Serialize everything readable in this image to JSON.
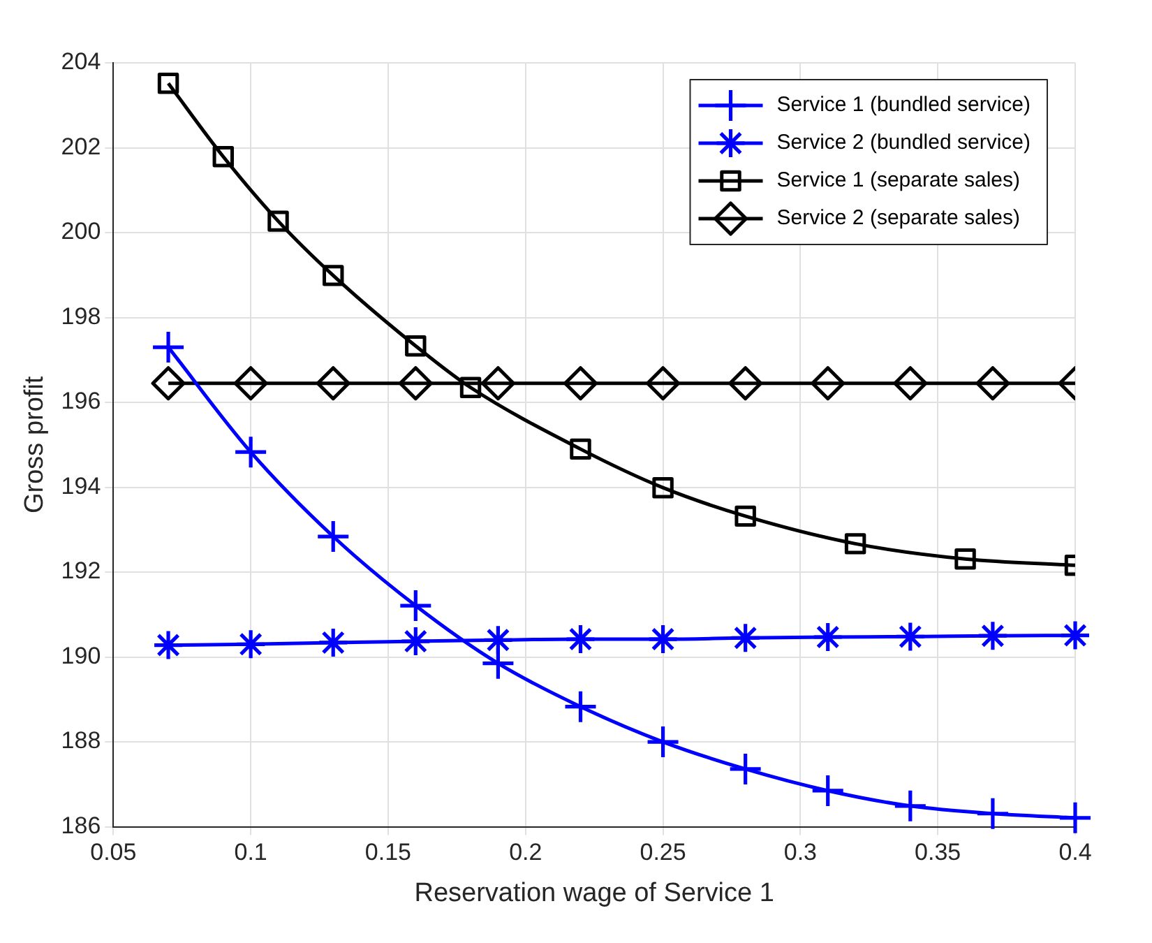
{
  "chart_data": {
    "type": "line",
    "xlabel": "Reservation wage of Service 1",
    "ylabel": "Gross profit",
    "xlim": [
      0.05,
      0.4
    ],
    "xticks": [
      0.05,
      0.1,
      0.15,
      0.2,
      0.25,
      0.3,
      0.35,
      0.4
    ],
    "ylim": [
      186,
      204
    ],
    "yticks": [
      186,
      188,
      190,
      192,
      194,
      196,
      198,
      200,
      202,
      204
    ],
    "grid": true,
    "legend": "top right",
    "line_style": "solid",
    "series": [
      {
        "name": "Service 1 (bundled service)",
        "color": "#0000ff",
        "marker": "cross",
        "x": [
          0.07,
          0.1,
          0.13,
          0.16,
          0.19,
          0.22,
          0.25,
          0.28,
          0.31,
          0.34,
          0.37,
          0.4
        ],
        "values": [
          197.3,
          194.83,
          192.84,
          191.21,
          189.85,
          188.83,
          188.0,
          187.36,
          186.85,
          186.49,
          186.31,
          186.21
        ]
      },
      {
        "name": "Service 2 (bundled service)",
        "color": "#0000ff",
        "marker": "star",
        "x": [
          0.07,
          0.1,
          0.13,
          0.16,
          0.19,
          0.22,
          0.25,
          0.28,
          0.31,
          0.34,
          0.37,
          0.4
        ],
        "values": [
          190.28,
          190.3,
          190.34,
          190.37,
          190.4,
          190.42,
          190.42,
          190.45,
          190.47,
          190.48,
          190.5,
          190.51
        ]
      },
      {
        "name": "Service 1 (separate sales)",
        "color": "#000000",
        "marker": "square",
        "x": [
          0.07,
          0.09,
          0.11,
          0.13,
          0.16,
          0.18,
          0.22,
          0.25,
          0.28,
          0.32,
          0.36,
          0.4
        ],
        "values": [
          203.52,
          201.79,
          200.27,
          198.99,
          197.33,
          196.35,
          194.9,
          193.99,
          193.32,
          192.67,
          192.31,
          192.16
        ]
      },
      {
        "name": "Service 2 (separate sales)",
        "color": "#000000",
        "marker": "diamond",
        "x": [
          0.07,
          0.1,
          0.13,
          0.16,
          0.19,
          0.22,
          0.25,
          0.28,
          0.31,
          0.34,
          0.37,
          0.4
        ],
        "values": [
          196.45,
          196.45,
          196.45,
          196.45,
          196.45,
          196.45,
          196.45,
          196.45,
          196.45,
          196.45,
          196.45,
          196.45
        ]
      }
    ]
  }
}
